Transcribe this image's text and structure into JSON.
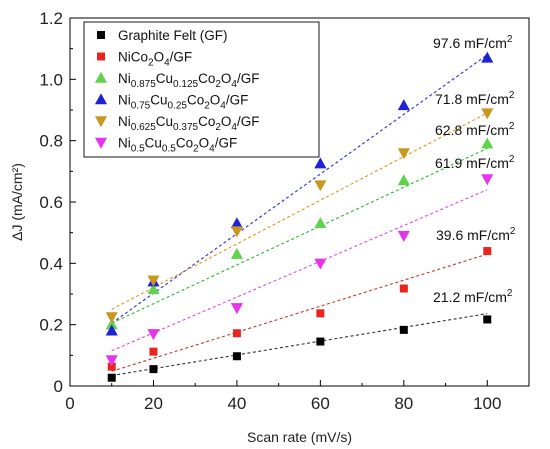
{
  "chart_data": {
    "type": "scatter",
    "title": "",
    "xlabel": "Scan rate (mV/s)",
    "ylabel": "ΔJ (mA/cm²)",
    "xlim": [
      0,
      110
    ],
    "ylim": [
      0,
      1.2
    ],
    "xticks": [
      "0",
      "20",
      "40",
      "60",
      "80",
      "100"
    ],
    "yticks": [
      "0",
      "0.2",
      "0.4",
      "0.6",
      "0.8",
      "1.0",
      "1.2"
    ],
    "grid": false,
    "legend_position": "top-left",
    "series": [
      {
        "name": "Graphite Felt (GF)",
        "legend_parts": [
          [
            "Graphite Felt (GF)",
            ""
          ]
        ],
        "marker": "square",
        "color": "#000000",
        "fit_color": "#333333",
        "x": [
          10,
          20,
          40,
          60,
          80,
          100
        ],
        "y": [
          0.027,
          0.055,
          0.097,
          0.145,
          0.183,
          0.217
        ],
        "fit": [
          0.034,
          0.236
        ],
        "annotation": {
          "value": "21.2 mF/cm",
          "sup": "2"
        }
      },
      {
        "name": "NiCo2O4/GF",
        "legend_parts": [
          [
            "NiCo",
            ""
          ],
          [
            "2",
            "sub"
          ],
          [
            "O",
            ""
          ],
          [
            "4",
            "sub"
          ],
          [
            "/GF",
            ""
          ]
        ],
        "marker": "square",
        "color": "#e8251f",
        "fit_color": "#c0392b",
        "x": [
          10,
          20,
          40,
          60,
          80,
          100
        ],
        "y": [
          0.063,
          0.112,
          0.172,
          0.237,
          0.318,
          0.44
        ],
        "fit": [
          0.048,
          0.43
        ],
        "annotation": {
          "value": "39.6 mF/cm",
          "sup": "2"
        }
      },
      {
        "name": "Ni0.875Cu0.125Co2O4/GF",
        "legend_parts": [
          [
            "Ni",
            ""
          ],
          [
            "0.875",
            "sub"
          ],
          [
            "Cu",
            ""
          ],
          [
            "0.125",
            "sub"
          ],
          [
            "Co",
            ""
          ],
          [
            "2",
            "sub"
          ],
          [
            "O",
            ""
          ],
          [
            "4",
            "sub"
          ],
          [
            "/GF",
            ""
          ]
        ],
        "marker": "triangle-up",
        "color": "#5fd34b",
        "fit_color": "#2bb52b",
        "x": [
          10,
          20,
          40,
          60,
          80,
          100
        ],
        "y": [
          0.2,
          0.315,
          0.43,
          0.53,
          0.67,
          0.79
        ],
        "fit": [
          0.205,
          0.775
        ],
        "annotation": {
          "value": "62.8 mF/cm",
          "sup": "2"
        }
      },
      {
        "name": "Ni0.75Cu0.25Co2O4/GF",
        "legend_parts": [
          [
            "Ni",
            ""
          ],
          [
            "0.75",
            "sub"
          ],
          [
            "Cu",
            ""
          ],
          [
            "0.25",
            "sub"
          ],
          [
            "Co",
            ""
          ],
          [
            "2",
            "sub"
          ],
          [
            "O",
            ""
          ],
          [
            "4",
            "sub"
          ],
          [
            "/GF",
            ""
          ]
        ],
        "marker": "triangle-up",
        "color": "#1f22d6",
        "fit_color": "#2a2fd8",
        "x": [
          10,
          20,
          40,
          60,
          80,
          100
        ],
        "y": [
          0.18,
          0.34,
          0.53,
          0.725,
          0.915,
          1.07
        ],
        "fit": [
          0.205,
          1.08
        ],
        "annotation": {
          "value": "97.6 mF/cm",
          "sup": "2"
        }
      },
      {
        "name": "Ni0.625Cu0.375Co2O4/GF",
        "legend_parts": [
          [
            "Ni",
            ""
          ],
          [
            "0.625",
            "sub"
          ],
          [
            "Cu",
            ""
          ],
          [
            "0.375",
            "sub"
          ],
          [
            "Co",
            ""
          ],
          [
            "2",
            "sub"
          ],
          [
            "O",
            ""
          ],
          [
            "4",
            "sub"
          ],
          [
            "/GF",
            ""
          ]
        ],
        "marker": "triangle-down",
        "color": "#c9961f",
        "fit_color": "#d89a1a",
        "x": [
          10,
          20,
          40,
          60,
          80,
          100
        ],
        "y": [
          0.225,
          0.345,
          0.505,
          0.655,
          0.76,
          0.89
        ],
        "fit": [
          0.25,
          0.89
        ],
        "annotation": {
          "value": "71.8 mF/cm",
          "sup": "2"
        }
      },
      {
        "name": "Ni0.5Cu0.5Co2O4/GF",
        "legend_parts": [
          [
            "Ni",
            ""
          ],
          [
            "0.5",
            "sub"
          ],
          [
            "Cu",
            ""
          ],
          [
            "0.5",
            "sub"
          ],
          [
            "Co",
            ""
          ],
          [
            "2",
            "sub"
          ],
          [
            "O",
            ""
          ],
          [
            "4",
            "sub"
          ],
          [
            "/GF",
            ""
          ]
        ],
        "marker": "triangle-down",
        "color": "#e634ee",
        "fit_color": "#e04ae0",
        "x": [
          10,
          20,
          40,
          60,
          80,
          100
        ],
        "y": [
          0.085,
          0.17,
          0.255,
          0.4,
          0.49,
          0.675
        ],
        "fit": [
          0.115,
          0.64
        ],
        "annotation": {
          "value": "61.9 mF/cm",
          "sup": "2"
        }
      }
    ]
  }
}
